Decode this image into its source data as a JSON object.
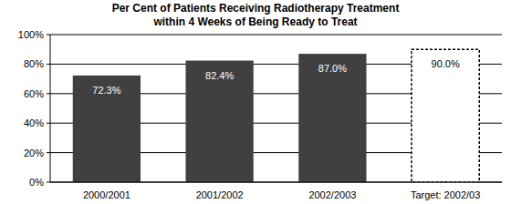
{
  "chart_data": {
    "type": "bar",
    "title": "Per Cent of Patients Receiving Radiotherapy Treatment\nwithin 4 Weeks of Being Ready to Treat",
    "categories": [
      "2000/2001",
      "2001/2002",
      "2002/2003",
      "Target: 2002/03"
    ],
    "values": [
      72.3,
      82.4,
      87.0,
      90.0
    ],
    "value_labels": [
      "72.3%",
      "82.4%",
      "87.0%",
      "90.0%"
    ],
    "colors": [
      "#404040",
      "#404040",
      "#404040",
      "#ffffff"
    ],
    "ylim": [
      0,
      100
    ],
    "yticks": [
      {
        "value": 0,
        "label": "0%"
      },
      {
        "value": 20,
        "label": "20%"
      },
      {
        "value": 40,
        "label": "40%"
      },
      {
        "value": 60,
        "label": "60%"
      },
      {
        "value": 80,
        "label": "80%"
      },
      {
        "value": 100,
        "label": "100%"
      }
    ],
    "grid": true,
    "data_labels": true
  }
}
